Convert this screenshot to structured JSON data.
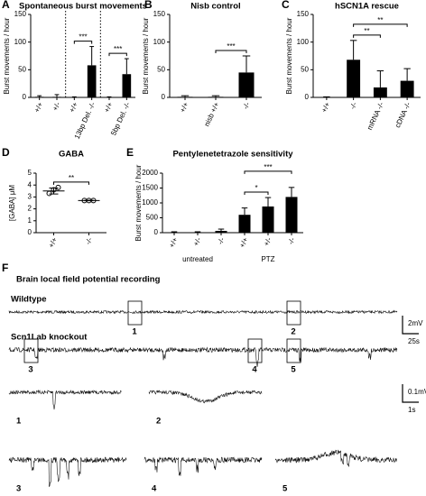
{
  "chart_data": [
    {
      "type": "bar",
      "label": "A",
      "title": "Spontaneous burst movements",
      "ylabel": "Burst movements / hour",
      "categories": [
        "+/+",
        "+/-",
        "+/+",
        "13bp Del. -/-",
        "+/+",
        "5bp Del. -/-"
      ],
      "values": [
        1,
        1,
        0,
        58,
        0,
        42
      ],
      "errors": [
        2,
        4,
        1,
        34,
        1,
        28
      ],
      "color": "#000000",
      "ylim": [
        0,
        150
      ],
      "yticks": [
        0,
        50,
        100,
        150
      ],
      "dividers": [
        2,
        4
      ],
      "annotations": [
        {
          "text": "***",
          "from": 2,
          "to": 3
        },
        {
          "text": "***",
          "from": 4,
          "to": 5
        }
      ]
    },
    {
      "type": "bar",
      "label": "B",
      "title": "Nisb control",
      "ylabel": "Burst movements / hour",
      "categories": [
        "+/+",
        "nisb +/+",
        "-/-"
      ],
      "values": [
        1,
        1,
        45
      ],
      "errors": [
        2,
        2,
        30
      ],
      "color": "#000000",
      "ylim": [
        0,
        150
      ],
      "yticks": [
        0,
        50,
        100,
        150
      ],
      "annotations": [
        {
          "text": "***",
          "from": 1,
          "to": 2
        }
      ]
    },
    {
      "type": "bar",
      "label": "C",
      "title": "hSCN1A rescue",
      "ylabel": "Burst movements / hour",
      "categories": [
        "+/+",
        "-/-",
        "mRNA -/-",
        "cDNA -/-"
      ],
      "values": [
        0,
        68,
        18,
        30
      ],
      "errors": [
        1,
        35,
        30,
        22
      ],
      "color": "#000000",
      "ylim": [
        0,
        150
      ],
      "yticks": [
        0,
        50,
        100,
        150
      ],
      "annotations": [
        {
          "text": "**",
          "from": 1,
          "to": 2
        },
        {
          "text": "**",
          "from": 1,
          "to": 3
        }
      ]
    },
    {
      "type": "dot",
      "label": "D",
      "title": "GABA",
      "ylabel": "[GABA] μM",
      "categories": [
        "+/+",
        "-/-"
      ],
      "points": [
        [
          3.3,
          3.6,
          3.8
        ],
        [
          2.7,
          2.7,
          2.7
        ]
      ],
      "values": [
        3.5,
        2.7
      ],
      "errors": [
        0.25,
        0.02
      ],
      "color": "#000000",
      "ylim": [
        0,
        5
      ],
      "yticks": [
        0,
        1,
        2,
        3,
        4,
        5
      ],
      "annotations": [
        {
          "text": "**",
          "from": 0,
          "to": 1
        }
      ]
    },
    {
      "type": "bar",
      "label": "E",
      "title": "Pentylenetetrazole sensitivity",
      "ylabel": "Burst movements / hour",
      "categories": [
        "+/+",
        "+/-",
        "-/-",
        "+/+",
        "+/-",
        "-/-"
      ],
      "values": [
        10,
        10,
        60,
        600,
        880,
        1200
      ],
      "errors": [
        20,
        20,
        60,
        230,
        300,
        320
      ],
      "color": "#000000",
      "ylim": [
        0,
        2000
      ],
      "yticks": [
        0,
        500,
        1000,
        1500,
        2000
      ],
      "groups": [
        {
          "label": "untreated",
          "from": 0,
          "to": 2
        },
        {
          "label": "PTZ",
          "from": 3,
          "to": 5
        }
      ],
      "annotations": [
        {
          "text": "*",
          "from": 3,
          "to": 4
        },
        {
          "text": "***",
          "from": 3,
          "to": 5
        }
      ]
    }
  ],
  "recording": {
    "label": "F",
    "title": "Brain local field potential recording",
    "rows": [
      {
        "label": "Wildtype",
        "boxes": [
          "1",
          "2"
        ]
      },
      {
        "label": "Scn1Lab knockout",
        "boxes": [
          "3",
          "4",
          "5"
        ]
      }
    ],
    "scalebars": [
      "2mV",
      "25s"
    ],
    "zoom_scalebars": [
      "0.1mV",
      "1s"
    ],
    "zooms": [
      "1",
      "2",
      "3",
      "4",
      "5"
    ]
  }
}
